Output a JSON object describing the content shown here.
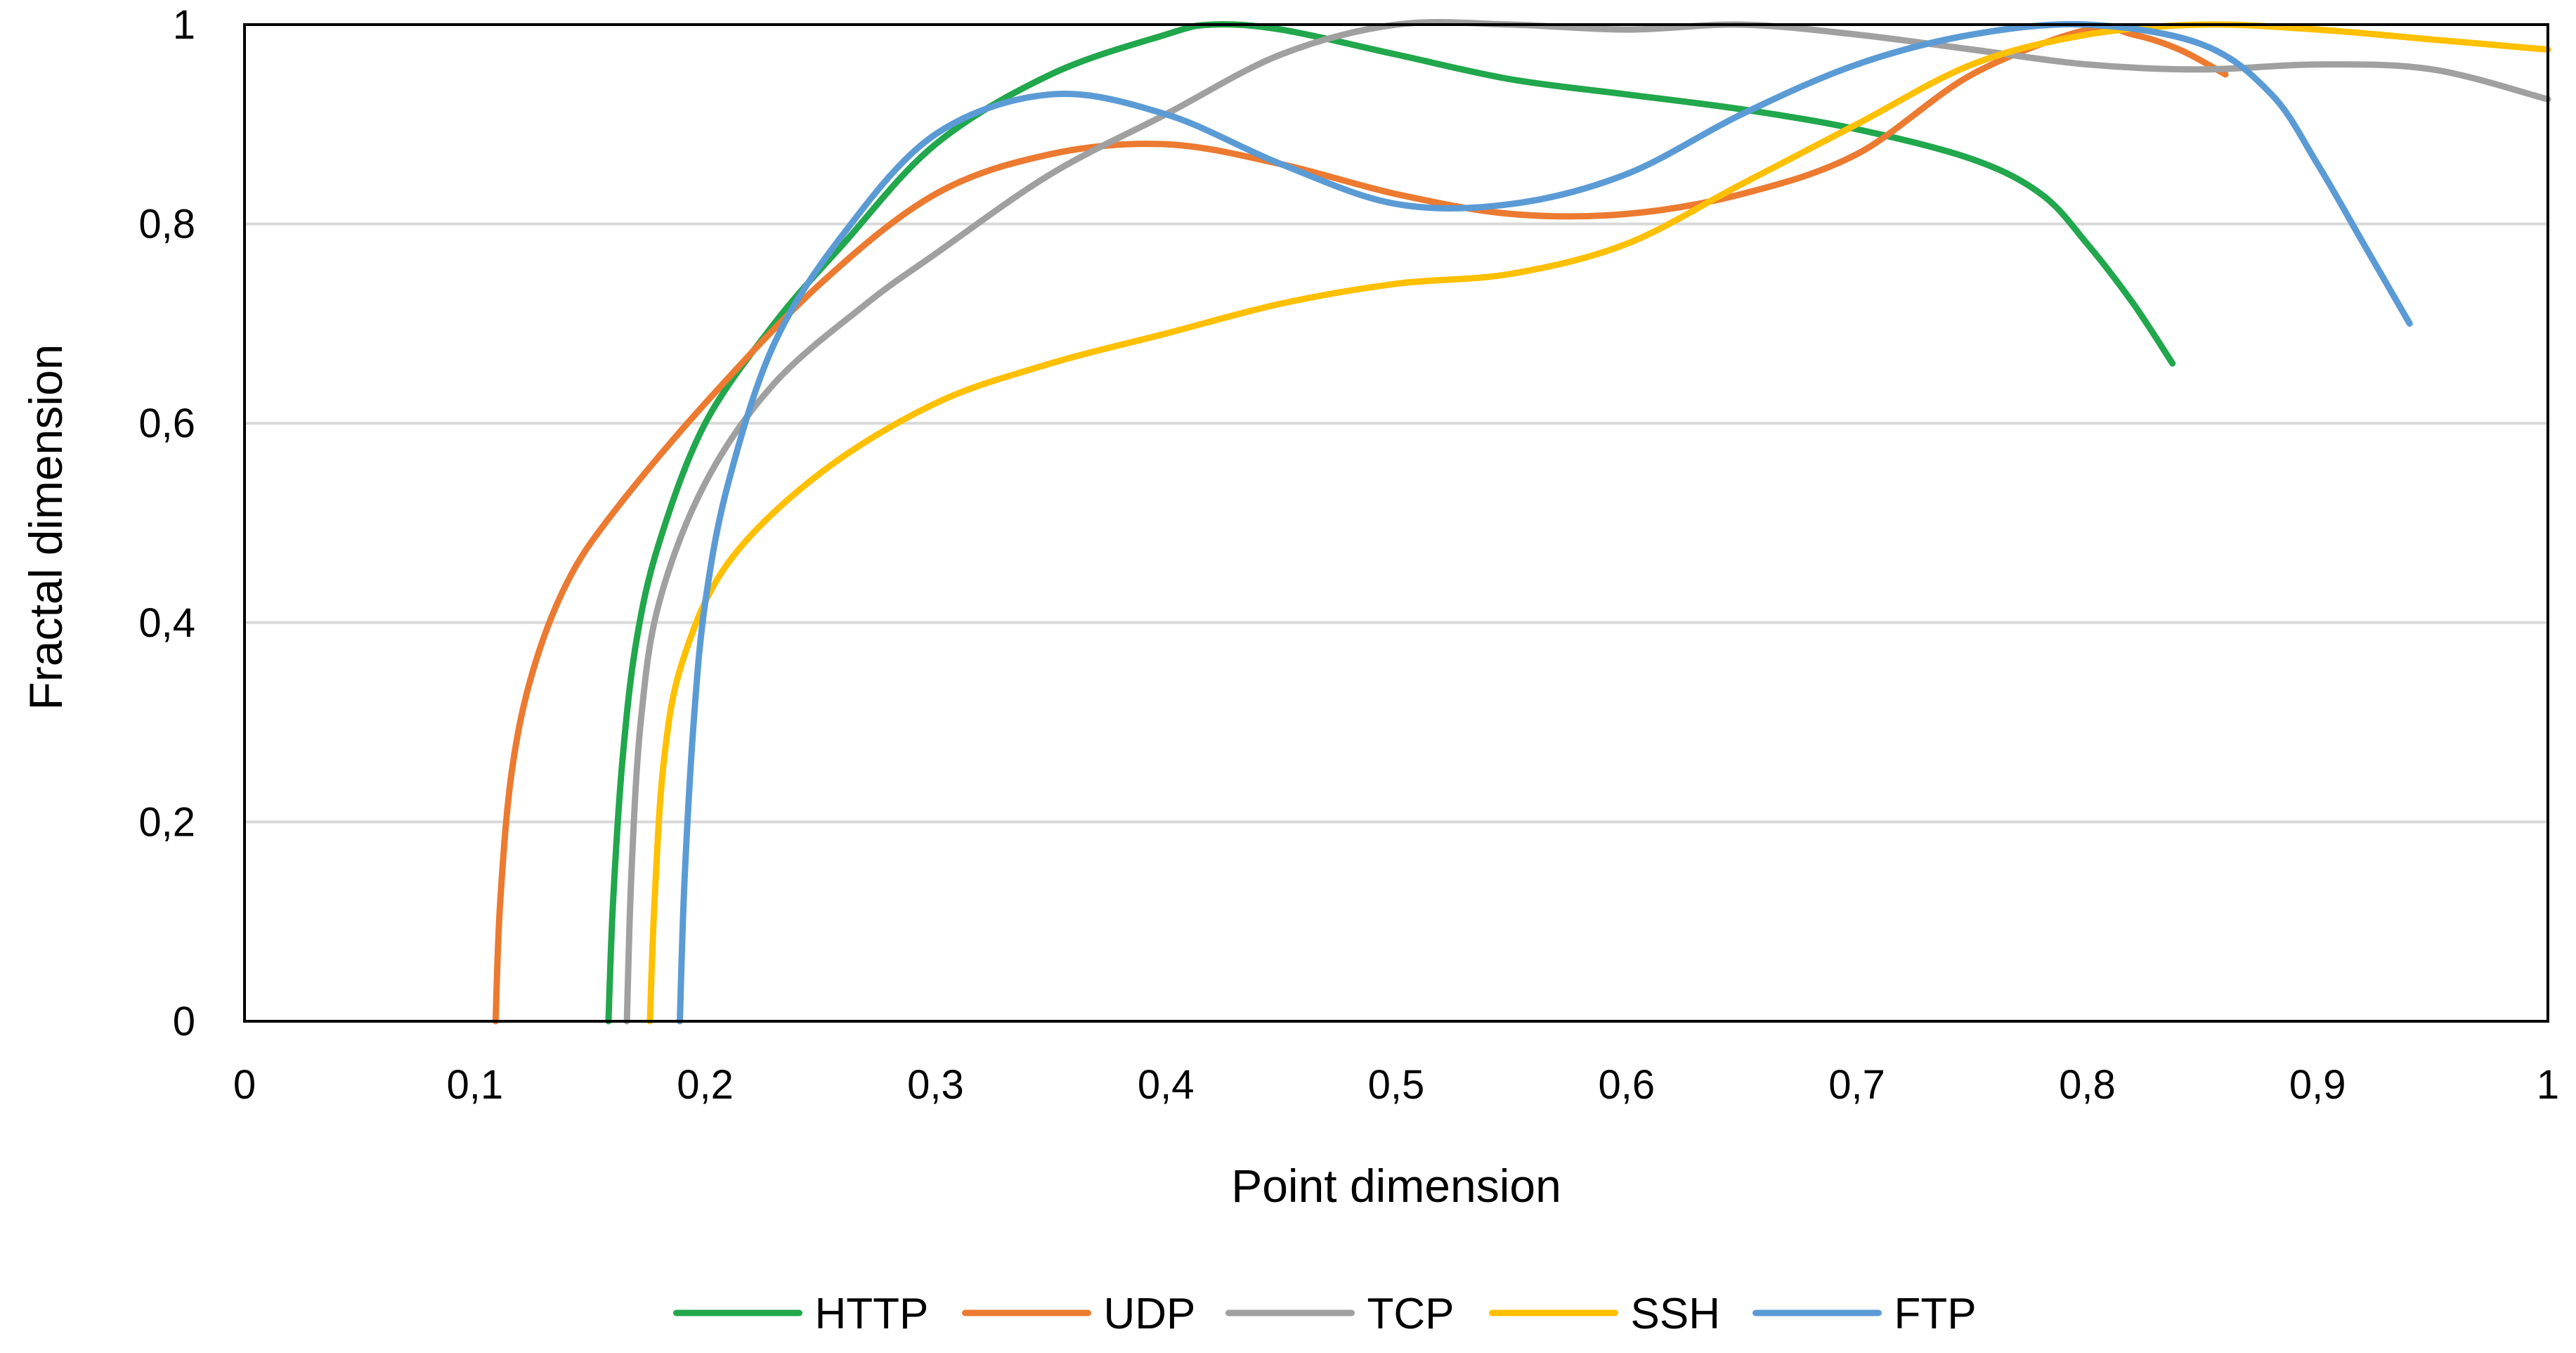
{
  "chart_data": {
    "type": "line",
    "title": "",
    "xlabel": "Point dimension",
    "ylabel": "Fractal dimension",
    "xlim": [
      0,
      1
    ],
    "ylim": [
      0,
      1
    ],
    "x_ticks": [
      0,
      0.1,
      0.2,
      0.3,
      0.4,
      0.5,
      0.6,
      0.7,
      0.8,
      0.9,
      1
    ],
    "x_tick_labels": [
      "0",
      "0,1",
      "0,2",
      "0,3",
      "0,4",
      "0,5",
      "0,6",
      "0,7",
      "0,8",
      "0,9",
      "1"
    ],
    "y_ticks": [
      0,
      0.2,
      0.4,
      0.6,
      0.8,
      1
    ],
    "y_tick_labels": [
      "0",
      "0,2",
      "0,4",
      "0,6",
      "0,8",
      "1"
    ],
    "grid": "horizontal",
    "legend_position": "bottom",
    "series": [
      {
        "name": "HTTP",
        "color": "#21A74C",
        "points": [
          [
            0.158,
            0
          ],
          [
            0.16,
            0.12
          ],
          [
            0.164,
            0.26
          ],
          [
            0.17,
            0.38
          ],
          [
            0.18,
            0.48
          ],
          [
            0.2,
            0.6
          ],
          [
            0.23,
            0.7
          ],
          [
            0.26,
            0.78
          ],
          [
            0.3,
            0.88
          ],
          [
            0.35,
            0.95
          ],
          [
            0.4,
            0.99
          ],
          [
            0.42,
            1.0
          ],
          [
            0.45,
            0.995
          ],
          [
            0.5,
            0.97
          ],
          [
            0.55,
            0.945
          ],
          [
            0.6,
            0.93
          ],
          [
            0.65,
            0.915
          ],
          [
            0.7,
            0.895
          ],
          [
            0.75,
            0.865
          ],
          [
            0.78,
            0.83
          ],
          [
            0.8,
            0.78
          ],
          [
            0.82,
            0.72
          ],
          [
            0.837,
            0.66
          ]
        ]
      },
      {
        "name": "UDP",
        "color": "#EC7A30",
        "points": [
          [
            0.109,
            0
          ],
          [
            0.111,
            0.12
          ],
          [
            0.116,
            0.25
          ],
          [
            0.125,
            0.35
          ],
          [
            0.14,
            0.44
          ],
          [
            0.16,
            0.51
          ],
          [
            0.2,
            0.62
          ],
          [
            0.25,
            0.74
          ],
          [
            0.3,
            0.83
          ],
          [
            0.35,
            0.87
          ],
          [
            0.4,
            0.88
          ],
          [
            0.45,
            0.86
          ],
          [
            0.5,
            0.83
          ],
          [
            0.55,
            0.81
          ],
          [
            0.6,
            0.81
          ],
          [
            0.65,
            0.83
          ],
          [
            0.7,
            0.87
          ],
          [
            0.75,
            0.95
          ],
          [
            0.8,
            0.995
          ],
          [
            0.82,
            0.99
          ],
          [
            0.84,
            0.975
          ],
          [
            0.86,
            0.95
          ]
        ]
      },
      {
        "name": "TCP",
        "color": "#A0A0A0",
        "points": [
          [
            0.166,
            0
          ],
          [
            0.168,
            0.15
          ],
          [
            0.172,
            0.3
          ],
          [
            0.18,
            0.42
          ],
          [
            0.2,
            0.54
          ],
          [
            0.23,
            0.64
          ],
          [
            0.27,
            0.72
          ],
          [
            0.3,
            0.77
          ],
          [
            0.35,
            0.85
          ],
          [
            0.4,
            0.91
          ],
          [
            0.45,
            0.97
          ],
          [
            0.5,
            1.0
          ],
          [
            0.55,
            1.0
          ],
          [
            0.6,
            0.995
          ],
          [
            0.65,
            1.0
          ],
          [
            0.7,
            0.99
          ],
          [
            0.75,
            0.975
          ],
          [
            0.8,
            0.96
          ],
          [
            0.85,
            0.955
          ],
          [
            0.9,
            0.96
          ],
          [
            0.95,
            0.955
          ],
          [
            1.0,
            0.925
          ]
        ]
      },
      {
        "name": "SSH",
        "color": "#FFC000",
        "points": [
          [
            0.176,
            0
          ],
          [
            0.178,
            0.12
          ],
          [
            0.182,
            0.26
          ],
          [
            0.19,
            0.36
          ],
          [
            0.21,
            0.46
          ],
          [
            0.25,
            0.55
          ],
          [
            0.3,
            0.62
          ],
          [
            0.35,
            0.66
          ],
          [
            0.4,
            0.69
          ],
          [
            0.45,
            0.72
          ],
          [
            0.5,
            0.74
          ],
          [
            0.55,
            0.75
          ],
          [
            0.6,
            0.78
          ],
          [
            0.65,
            0.84
          ],
          [
            0.7,
            0.9
          ],
          [
            0.75,
            0.96
          ],
          [
            0.8,
            0.99
          ],
          [
            0.85,
            1.0
          ],
          [
            0.9,
            0.995
          ],
          [
            0.95,
            0.985
          ],
          [
            1.0,
            0.975
          ]
        ]
      },
      {
        "name": "FTP",
        "color": "#5B9BD5",
        "points": [
          [
            0.189,
            0
          ],
          [
            0.191,
            0.14
          ],
          [
            0.195,
            0.3
          ],
          [
            0.2,
            0.42
          ],
          [
            0.21,
            0.54
          ],
          [
            0.23,
            0.68
          ],
          [
            0.26,
            0.79
          ],
          [
            0.3,
            0.89
          ],
          [
            0.35,
            0.93
          ],
          [
            0.4,
            0.91
          ],
          [
            0.45,
            0.86
          ],
          [
            0.5,
            0.82
          ],
          [
            0.55,
            0.82
          ],
          [
            0.6,
            0.85
          ],
          [
            0.65,
            0.91
          ],
          [
            0.7,
            0.96
          ],
          [
            0.75,
            0.99
          ],
          [
            0.8,
            1.0
          ],
          [
            0.85,
            0.98
          ],
          [
            0.88,
            0.93
          ],
          [
            0.9,
            0.86
          ],
          [
            0.92,
            0.78
          ],
          [
            0.94,
            0.7
          ]
        ]
      }
    ]
  }
}
